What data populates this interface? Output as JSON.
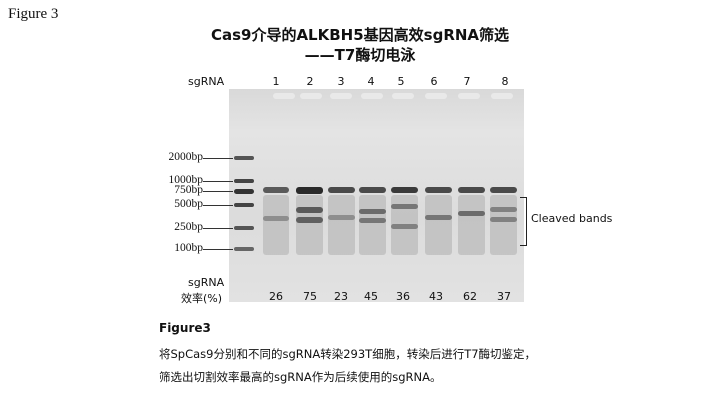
{
  "figure_label": "Figure 3",
  "title_line1": "Cas9介导的ALKBH5基因高效sgRNA筛选",
  "title_line2": "——T7酶切电泳",
  "gel": {
    "lane_header": "sgRNA",
    "lanes": [
      "1",
      "2",
      "3",
      "4",
      "5",
      "6",
      "7",
      "8"
    ],
    "ladder": [
      "2000bp",
      "1000bp",
      "750bp",
      "500bp",
      "250bp",
      "100bp"
    ],
    "efficiency_header_1": "sgRNA",
    "efficiency_header_2": "效率(%)",
    "efficiency": [
      "26",
      "75",
      "23",
      "45",
      "36",
      "43",
      "62",
      "37"
    ],
    "cleaved_label": "Cleaved bands"
  },
  "caption": {
    "heading": "Figure3",
    "line1": "将SpCas9分别和不同的sgRNA转染293T细胞，转染后进行T7酶切鉴定，",
    "line2": "筛选出切割效率最高的sgRNA作为后续使用的sgRNA。"
  }
}
